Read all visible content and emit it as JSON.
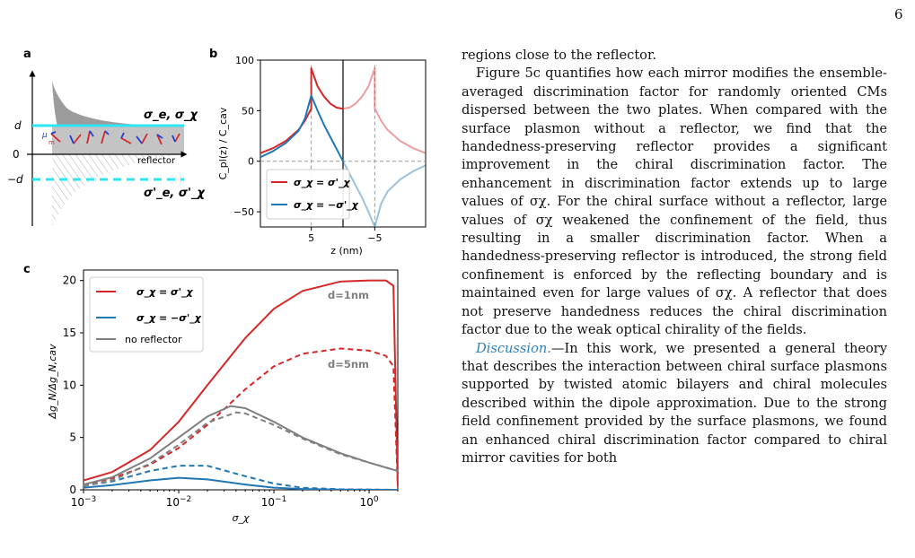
{
  "page_number": "6",
  "panels": {
    "a": {
      "label": "a",
      "axis_labels": [
        "d",
        "0",
        "−d"
      ],
      "top_label": "σ_e, σ_χ",
      "bottom_label": "σ'_e, σ'_χ",
      "reflector_label": "reflector",
      "mu_label": "μ",
      "m_label": "m"
    },
    "b": {
      "label": "b",
      "ylabel": "C_pl(z) / C_cav",
      "xlabel": "z (nm)",
      "yticks": [
        "100",
        "50",
        "0",
        "−50"
      ],
      "xticks": [
        "5",
        "−5"
      ],
      "legend": [
        {
          "label": "σ_χ = σ'_χ",
          "color": "#d62728"
        },
        {
          "label": "σ_χ = −σ'_χ",
          "color": "#1f77b4"
        }
      ]
    },
    "c": {
      "label": "c",
      "ylabel": "Δg_N/Δg_N,cav",
      "xlabel": "σ_χ",
      "yticks": [
        "0",
        "5",
        "10",
        "15",
        "20"
      ],
      "xticks": [
        "10^-3",
        "10^-2",
        "10^-1",
        "10^0"
      ],
      "legend": [
        {
          "label": "σ_χ = σ'_χ",
          "color": "#d62728"
        },
        {
          "label": "σ_χ = −σ'_χ",
          "color": "#1f77b4"
        },
        {
          "label": "no reflector",
          "color": "#7f7f7f"
        }
      ],
      "annotations": [
        "d=1nm",
        "d=5nm"
      ]
    }
  },
  "chart_data": [
    {
      "panel": "b",
      "type": "line",
      "xlabel": "z (nm)",
      "ylabel": "C_pl(z) / C_cav",
      "ylim": [
        -65,
        100
      ],
      "xlim": [
        13,
        -13
      ],
      "grid": false,
      "legend_position": "lower-left",
      "series": [
        {
          "name": "σ_χ = σ'_χ",
          "color": "#d62728",
          "x": [
            13,
            11,
            9,
            7,
            6,
            5,
            5,
            4,
            3,
            2,
            1,
            0
          ],
          "y": [
            8,
            13,
            20,
            31,
            40,
            52,
            92,
            74,
            64,
            57,
            53,
            52
          ]
        },
        {
          "name": "σ_χ = σ'_χ (mirror)",
          "color": "#d62728",
          "faded": true,
          "x": [
            0,
            -1,
            -2,
            -3,
            -4,
            -5,
            -5,
            -6,
            -7,
            -9,
            -11,
            -13
          ],
          "y": [
            52,
            53,
            57,
            64,
            74,
            92,
            52,
            40,
            31,
            20,
            13,
            8
          ]
        },
        {
          "name": "σ_χ = −σ'_χ",
          "color": "#1f77b4",
          "x": [
            13,
            11,
            9,
            7,
            6,
            5,
            4,
            3,
            2,
            1,
            0
          ],
          "y": [
            4,
            10,
            18,
            30,
            42,
            65,
            50,
            36,
            24,
            12,
            0
          ]
        },
        {
          "name": "σ_χ = −σ'_χ (mirror)",
          "color": "#1f77b4",
          "faded": true,
          "x": [
            0,
            -1,
            -2,
            -3,
            -4,
            -5,
            -6,
            -7,
            -9,
            -11,
            -13
          ],
          "y": [
            0,
            -12,
            -24,
            -36,
            -50,
            -65,
            -42,
            -30,
            -18,
            -10,
            -4
          ]
        }
      ]
    },
    {
      "panel": "c",
      "type": "line",
      "xlabel": "σ_χ",
      "ylabel": "Δg_N/Δg_N,cav",
      "xscale": "log",
      "xlim": [
        0.001,
        2
      ],
      "ylim": [
        0,
        21
      ],
      "grid": false,
      "legend_position": "top-left",
      "series": [
        {
          "name": "σ_χ = σ'_χ",
          "style": "solid",
          "color": "#d62728",
          "x": [
            0.001,
            0.002,
            0.005,
            0.01,
            0.02,
            0.05,
            0.1,
            0.2,
            0.5,
            1.0,
            1.5,
            1.8,
            2.0
          ],
          "y": [
            0.9,
            1.7,
            3.8,
            6.5,
            10.0,
            14.5,
            17.3,
            19.0,
            19.9,
            20.0,
            20.0,
            19.5,
            0.3
          ]
        },
        {
          "name": "",
          "style": "dashed",
          "color": "#d62728",
          "x": [
            0.001,
            0.002,
            0.005,
            0.01,
            0.02,
            0.05,
            0.1,
            0.2,
            0.5,
            1.0,
            1.5,
            1.8,
            2.0
          ],
          "y": [
            0.5,
            1.1,
            2.4,
            4.0,
            6.2,
            9.6,
            11.8,
            13.0,
            13.5,
            13.3,
            12.8,
            11.8,
            0.3
          ]
        },
        {
          "name": "σ_χ = −σ'_χ",
          "style": "solid",
          "color": "#1f77b4",
          "x": [
            0.001,
            0.002,
            0.005,
            0.01,
            0.02,
            0.05,
            0.1,
            0.2,
            0.5,
            2.0
          ],
          "y": [
            0.2,
            0.45,
            0.9,
            1.15,
            1.0,
            0.5,
            0.2,
            0.08,
            0.02,
            0.0
          ]
        },
        {
          "name": "",
          "style": "dashed",
          "color": "#1f77b4",
          "x": [
            0.001,
            0.002,
            0.005,
            0.01,
            0.02,
            0.05,
            0.1,
            0.2,
            0.5,
            2.0
          ],
          "y": [
            0.4,
            0.8,
            1.8,
            2.3,
            2.3,
            1.3,
            0.6,
            0.2,
            0.05,
            0.0
          ]
        },
        {
          "name": "no reflector",
          "style": "solid",
          "color": "#7f7f7f",
          "x": [
            0.001,
            0.002,
            0.005,
            0.01,
            0.02,
            0.035,
            0.05,
            0.1,
            0.2,
            0.5,
            1.0,
            2.0
          ],
          "y": [
            0.5,
            1.2,
            3.0,
            5.0,
            7.0,
            8.0,
            7.8,
            6.5,
            5.0,
            3.5,
            2.6,
            1.8
          ]
        },
        {
          "name": "",
          "style": "dashed",
          "color": "#7f7f7f",
          "x": [
            0.001,
            0.002,
            0.005,
            0.01,
            0.02,
            0.04,
            0.05,
            0.1,
            0.2,
            0.5,
            1.0,
            2.0
          ],
          "y": [
            0.35,
            0.9,
            2.5,
            4.3,
            6.4,
            7.4,
            7.3,
            6.2,
            4.9,
            3.4,
            2.6,
            1.8
          ]
        }
      ]
    }
  ],
  "text": {
    "p1": "regions close to the reflector.",
    "p2": "Figure 5c quantifies how each mirror modifies the ensemble-averaged discrimination factor for randomly oriented CMs dispersed between the two plates. When compared with the surface plasmon without a reflector, we find that the handedness-preserving reflector provides a significant improvement in the chiral discrimination factor. The enhancement in discrimination factor extends up to large values of σχ. For the chiral surface without a reflector, large values of σχ weakened the confinement of the field, thus resulting in a smaller discrimination factor. When a handedness-preserving reflector is introduced, the strong field confinement is enforced by the reflecting boundary and is maintained even for large values of σχ. A reflector that does not preserve handedness reduces the chiral discrimination factor due to the weak optical chirality of the fields.",
    "p3_heading": "Discussion.",
    "p3_body": "—In this work, we presented a general theory that describes the interaction between chiral surface plasmons supported by twisted atomic bilayers and chiral molecules described within the dipole approximation. Due to the strong field confinement provided by the surface plasmons, we found an enhanced chiral discrimination factor compared to chiral mirror cavities for both"
  }
}
